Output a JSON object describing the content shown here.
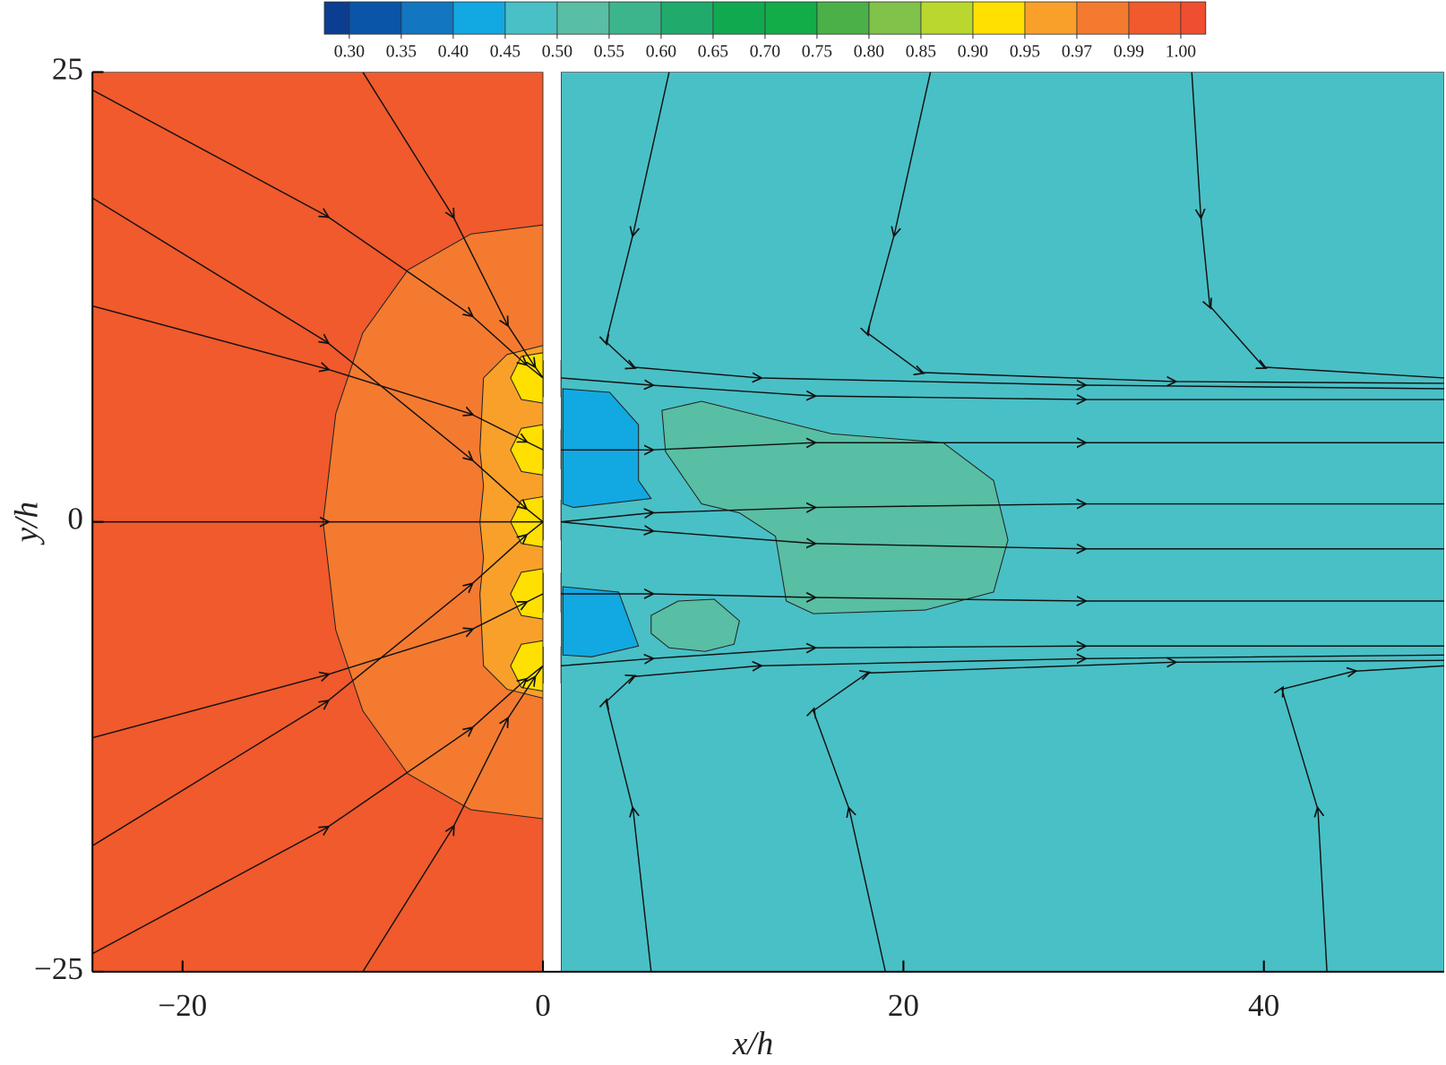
{
  "chart_data": {
    "type": "contour",
    "x_label": "x/h",
    "y_label": "y/h",
    "xlim": [
      -25,
      50
    ],
    "ylim": [
      -25,
      25
    ],
    "xticks": [
      {
        "value": -20,
        "label": "−20"
      },
      0,
      20,
      40
    ],
    "yticks": [
      {
        "value": -25,
        "label": "−25"
      },
      0,
      25
    ],
    "colorbar": {
      "levels": [
        {
          "value": 0.3,
          "label": "0.30"
        },
        {
          "value": 0.35,
          "label": "0.35"
        },
        {
          "value": 0.4,
          "label": "0.40"
        },
        {
          "value": 0.45,
          "label": "0.45"
        },
        {
          "value": 0.5,
          "label": "0.50"
        },
        {
          "value": 0.55,
          "label": "0.55"
        },
        {
          "value": 0.6,
          "label": "0.60"
        },
        {
          "value": 0.65,
          "label": "0.65"
        },
        {
          "value": 0.7,
          "label": "0.70"
        },
        {
          "value": 0.75,
          "label": "0.75"
        },
        {
          "value": 0.8,
          "label": "0.80"
        },
        {
          "value": 0.85,
          "label": "0.85"
        },
        {
          "value": 0.9,
          "label": "0.90"
        },
        {
          "value": 0.95,
          "label": "0.95"
        },
        {
          "value": 0.97,
          "label": "0.97"
        },
        {
          "value": 0.99,
          "label": "0.99"
        },
        {
          "value": 1.0,
          "label": "1.00"
        }
      ],
      "colors": [
        "#0b3d91",
        "#0a55a8",
        "#1276c0",
        "#12a8e2",
        "#49c0c6",
        "#58bea4",
        "#3db58c",
        "#20ab6c",
        "#10a950",
        "#12ad48",
        "#4bb048",
        "#80c24a",
        "#b9d72e",
        "#ffe000",
        "#f9a02b",
        "#f47a30",
        "#f05a2c",
        "#f04e30"
      ]
    },
    "regions": [
      {
        "value": 0.995,
        "x": [
          -25,
          0,
          0,
          -25
        ],
        "y": [
          25,
          25,
          -25,
          -25
        ]
      },
      {
        "value": 0.98,
        "x": [
          0,
          -4,
          -7.5,
          -10,
          -11.5,
          -12.2,
          -11.5,
          -10,
          -7.5,
          -4,
          0
        ],
        "y": [
          16.5,
          16,
          14,
          10.5,
          6,
          0,
          -6,
          -10.5,
          -14,
          -16,
          -16.5
        ]
      },
      {
        "value": 0.96,
        "x": [
          0,
          -2,
          -3.3,
          -3.5,
          -3.3,
          -3.5,
          -3.3,
          -3.5,
          -3.3,
          -2,
          0
        ],
        "y": [
          9.8,
          9.3,
          8,
          4,
          2,
          0,
          -2,
          -4,
          -8,
          -9.3,
          -9.8
        ]
      },
      {
        "value": 0.925,
        "x": [
          0,
          -1.2,
          -1.8,
          -1.2,
          0
        ],
        "y": [
          9.4,
          9.2,
          8,
          6.8,
          6.6
        ]
      },
      {
        "value": 0.925,
        "x": [
          0,
          -1.2,
          -1.8,
          -1.2,
          0
        ],
        "y": [
          5.4,
          5.2,
          4,
          2.8,
          2.6
        ]
      },
      {
        "value": 0.925,
        "x": [
          0,
          -1.2,
          -1.8,
          -1.2,
          0
        ],
        "y": [
          1.4,
          1.2,
          0,
          -1.2,
          -1.4
        ]
      },
      {
        "value": 0.925,
        "x": [
          0,
          -1.2,
          -1.8,
          -1.2,
          0
        ],
        "y": [
          -2.6,
          -2.8,
          -4,
          -5.2,
          -5.4
        ]
      },
      {
        "value": 0.925,
        "x": [
          0,
          -1.2,
          -1.8,
          -1.2,
          0
        ],
        "y": [
          -6.6,
          -6.8,
          -8,
          -9.2,
          -9.4
        ]
      },
      {
        "value": 0.475,
        "x": [
          1,
          50,
          50,
          1
        ],
        "y": [
          25,
          25,
          -25,
          -25
        ]
      },
      {
        "value": 0.525,
        "x": [
          6.6,
          8.8,
          16,
          22.2,
          25,
          25.8,
          25,
          21.2,
          15,
          13.5,
          12.9,
          10.9,
          8.8,
          6.8
        ],
        "y": [
          6.2,
          6.7,
          4.9,
          4.4,
          2.3,
          -1,
          -3.9,
          -4.9,
          -5.1,
          -4.4,
          -0.8,
          0.5,
          1,
          3.9
        ]
      },
      {
        "value": 0.525,
        "x": [
          6,
          7.5,
          9.5,
          10.9,
          10.6,
          9,
          7,
          6
        ],
        "y": [
          -5.2,
          -4.4,
          -4.3,
          -5.5,
          -6.8,
          -7.2,
          -7,
          -6.2
        ]
      },
      {
        "value": 0.425,
        "x": [
          1.1,
          3.7,
          5.3,
          5.3,
          6,
          1.7,
          1.1
        ],
        "y": [
          7.4,
          7.2,
          5.4,
          2.3,
          1.3,
          0.8,
          1
        ]
      },
      {
        "value": 0.425,
        "x": [
          1.1,
          4.2,
          5.3,
          2.7,
          1.1
        ],
        "y": [
          -3.6,
          -3.9,
          -6.9,
          -7.5,
          -7.4
        ]
      }
    ],
    "streamlines": [
      {
        "x": [
          -25,
          -12,
          -4,
          -1,
          0
        ],
        "y": [
          24,
          17,
          11.5,
          8.8,
          8
        ]
      },
      {
        "x": [
          -25,
          -12,
          -4,
          -1,
          0
        ],
        "y": [
          12,
          8.5,
          6,
          4.5,
          4
        ]
      },
      {
        "x": [
          -25,
          -12,
          -4,
          -1,
          0
        ],
        "y": [
          18,
          10,
          3.5,
          0.8,
          0
        ]
      },
      {
        "x": [
          -25,
          -12,
          0
        ],
        "y": [
          0,
          0,
          0
        ]
      },
      {
        "x": [
          -25,
          -12,
          -4,
          -1,
          0
        ],
        "y": [
          -18,
          -10,
          -3.5,
          -0.8,
          0
        ]
      },
      {
        "x": [
          -25,
          -12,
          -4,
          -1,
          0
        ],
        "y": [
          -12,
          -8.5,
          -6,
          -4.5,
          -4
        ]
      },
      {
        "x": [
          -25,
          -12,
          -4,
          -1,
          0
        ],
        "y": [
          -24,
          -17,
          -11.5,
          -8.8,
          -8
        ]
      },
      {
        "x": [
          -10,
          -5,
          -2,
          -0.5,
          0
        ],
        "y": [
          25,
          17,
          11,
          8.7,
          8
        ]
      },
      {
        "x": [
          -10,
          -5,
          -2,
          -0.5,
          0
        ],
        "y": [
          -25,
          -17,
          -11,
          -8.7,
          -8
        ]
      },
      {
        "x": [
          1,
          6,
          15,
          30,
          50
        ],
        "y": [
          8,
          7.6,
          7,
          6.8,
          6.8
        ]
      },
      {
        "x": [
          1,
          6,
          15,
          30,
          50
        ],
        "y": [
          4,
          4,
          4.4,
          4.4,
          4.4
        ]
      },
      {
        "x": [
          1,
          6,
          15,
          30,
          50
        ],
        "y": [
          0,
          0.5,
          0.8,
          1,
          1
        ]
      },
      {
        "x": [
          1,
          6,
          15,
          30,
          50
        ],
        "y": [
          0,
          -0.5,
          -1.2,
          -1.5,
          -1.5
        ]
      },
      {
        "x": [
          1,
          6,
          15,
          30,
          50
        ],
        "y": [
          -4,
          -4,
          -4.2,
          -4.4,
          -4.4
        ]
      },
      {
        "x": [
          1,
          6,
          15,
          30,
          50
        ],
        "y": [
          -8,
          -7.6,
          -7,
          -6.9,
          -6.9
        ]
      },
      {
        "x": [
          7,
          5,
          3.5,
          5,
          12,
          30,
          50
        ],
        "y": [
          25,
          16,
          10,
          8.6,
          8,
          7.6,
          7.4
        ]
      },
      {
        "x": [
          21.5,
          19.5,
          18,
          21,
          35,
          50
        ],
        "y": [
          25,
          16,
          10.5,
          8.3,
          7.8,
          7.7
        ]
      },
      {
        "x": [
          36,
          36.5,
          37,
          40,
          50
        ],
        "y": [
          25,
          17,
          12,
          8.6,
          8
        ]
      },
      {
        "x": [
          6,
          5,
          3.5,
          5,
          12,
          30,
          50
        ],
        "y": [
          -25,
          -16,
          -10,
          -8.6,
          -8,
          -7.6,
          -7.4
        ]
      },
      {
        "x": [
          19,
          17,
          15,
          18,
          35,
          50
        ],
        "y": [
          -25,
          -16,
          -10.5,
          -8.4,
          -7.8,
          -7.7
        ]
      },
      {
        "x": [
          43.5,
          43,
          41,
          45,
          50
        ],
        "y": [
          -25,
          -16,
          -9.3,
          -8.3,
          -8
        ]
      }
    ]
  }
}
